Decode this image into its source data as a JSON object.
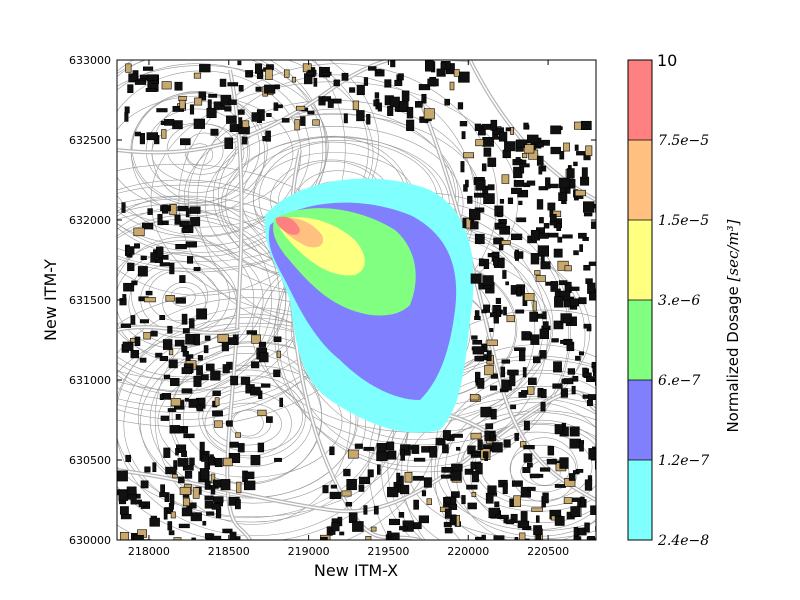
{
  "map": {
    "xlabel": "New ITM-X",
    "ylabel": "New ITM-Y",
    "xlim": [
      217800,
      220800
    ],
    "ylim": [
      630000,
      633000
    ],
    "x_ticks": [
      "218000",
      "218500",
      "219000",
      "219500",
      "220000",
      "220500"
    ],
    "x_tick_values": [
      218000,
      218500,
      219000,
      219500,
      220000,
      220500
    ],
    "y_ticks": [
      "630000",
      "630500",
      "631000",
      "631500",
      "632000",
      "632500",
      "633000"
    ],
    "y_tick_values": [
      630000,
      630500,
      631000,
      631500,
      632000,
      632500,
      633000
    ],
    "base_layers": [
      "buildings",
      "roads",
      "terrain-contours"
    ],
    "building_color": "#c8a86b"
  },
  "colorbar": {
    "title": "Normalized Dosage [sec/m³]",
    "title_main": "Normalized Dosage ",
    "title_unit": "[sec/m³]",
    "top_label": "10",
    "labels": [
      "7.5e−5",
      "1.5e−5",
      "3.e−6",
      "6.e−7",
      "1.2e−7",
      "2.4e−8"
    ],
    "levels": [
      {
        "from": "2.4e-8",
        "to": "1.2e-7",
        "color": "#80ffff"
      },
      {
        "from": "1.2e-7",
        "to": "6.e-7",
        "color": "#8080ff"
      },
      {
        "from": "6.e-7",
        "to": "3.e-6",
        "color": "#80ff80"
      },
      {
        "from": "3.e-6",
        "to": "1.5e-5",
        "color": "#ffff80"
      },
      {
        "from": "1.5e-5",
        "to": "7.5e-5",
        "color": "#ffc080"
      },
      {
        "from": "7.5e-5",
        "to": "10",
        "color": "#ff8080"
      }
    ]
  }
}
